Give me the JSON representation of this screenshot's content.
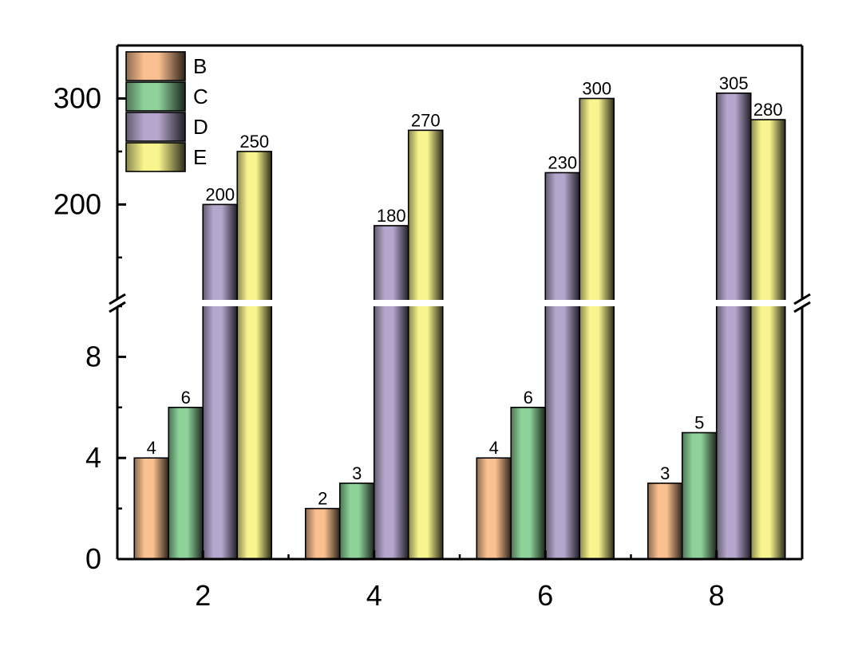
{
  "chart_data": {
    "type": "bar",
    "categories": [
      "2",
      "4",
      "6",
      "8"
    ],
    "series": [
      {
        "name": "B",
        "values": [
          4,
          2,
          4,
          3
        ],
        "color": "#FAC08F"
      },
      {
        "name": "C",
        "values": [
          6,
          3,
          6,
          5
        ],
        "color": "#8ED29A"
      },
      {
        "name": "D",
        "values": [
          200,
          180,
          230,
          305
        ],
        "color": "#B4A6CC"
      },
      {
        "name": "E",
        "values": [
          250,
          270,
          300,
          280
        ],
        "color": "#F9F58E"
      }
    ],
    "y_axis": {
      "broken": true,
      "lower_range": [
        0,
        10
      ],
      "upper_range": [
        110,
        350
      ],
      "lower_ticks": [
        "0",
        "4",
        "8"
      ],
      "upper_ticks": [
        "200",
        "300"
      ]
    },
    "title": "",
    "xlabel": "",
    "ylabel": "",
    "legend": "top-left",
    "grid": false,
    "data_labels": true
  }
}
